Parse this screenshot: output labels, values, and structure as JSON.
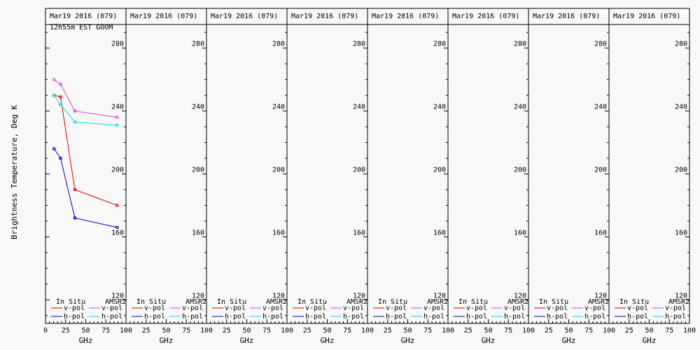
{
  "ylabel": "Brightness Temperature, Deg K",
  "xlabel": "GHz",
  "panel_title": "Mar19 2016 (079)",
  "panel1_subtitle": "12h55m EST GOOM",
  "legend": {
    "insitu_header": "In Situ",
    "amsr2_header": "AMSR2",
    "vpol": "v-pol",
    "hpol": "h-pol"
  },
  "yticks": [
    "280",
    "240",
    "200",
    "160",
    "120"
  ],
  "xticks_first": [
    "0",
    "25",
    "50",
    "75",
    "100"
  ],
  "xticks_rest": [
    "25",
    "50",
    "75",
    "100"
  ],
  "colors": {
    "insitu_vpol": "#e00000",
    "insitu_hpol": "#0000c0",
    "amsr2_vpol": "#e040e0",
    "amsr2_hpol": "#00e0e0"
  },
  "chart_data": {
    "type": "line",
    "panels": 8,
    "xlim": [
      0,
      100
    ],
    "ylim": [
      105,
      295
    ],
    "x": [
      10.65,
      18.7,
      36.5,
      89.0
    ],
    "series": [
      {
        "name": "In Situ v-pol",
        "panel": 1,
        "color_key": "insitu_vpol",
        "values": [
          250,
          249,
          190,
          180
        ]
      },
      {
        "name": "In Situ h-pol",
        "panel": 1,
        "color_key": "insitu_hpol",
        "values": [
          216,
          210,
          172,
          166
        ]
      },
      {
        "name": "AMSR2 v-pol",
        "panel": 1,
        "color_key": "amsr2_vpol",
        "values": [
          260,
          257,
          240,
          236
        ]
      },
      {
        "name": "AMSR2 h-pol",
        "panel": 1,
        "color_key": "amsr2_hpol",
        "values": [
          250,
          244,
          233,
          231
        ]
      }
    ]
  }
}
